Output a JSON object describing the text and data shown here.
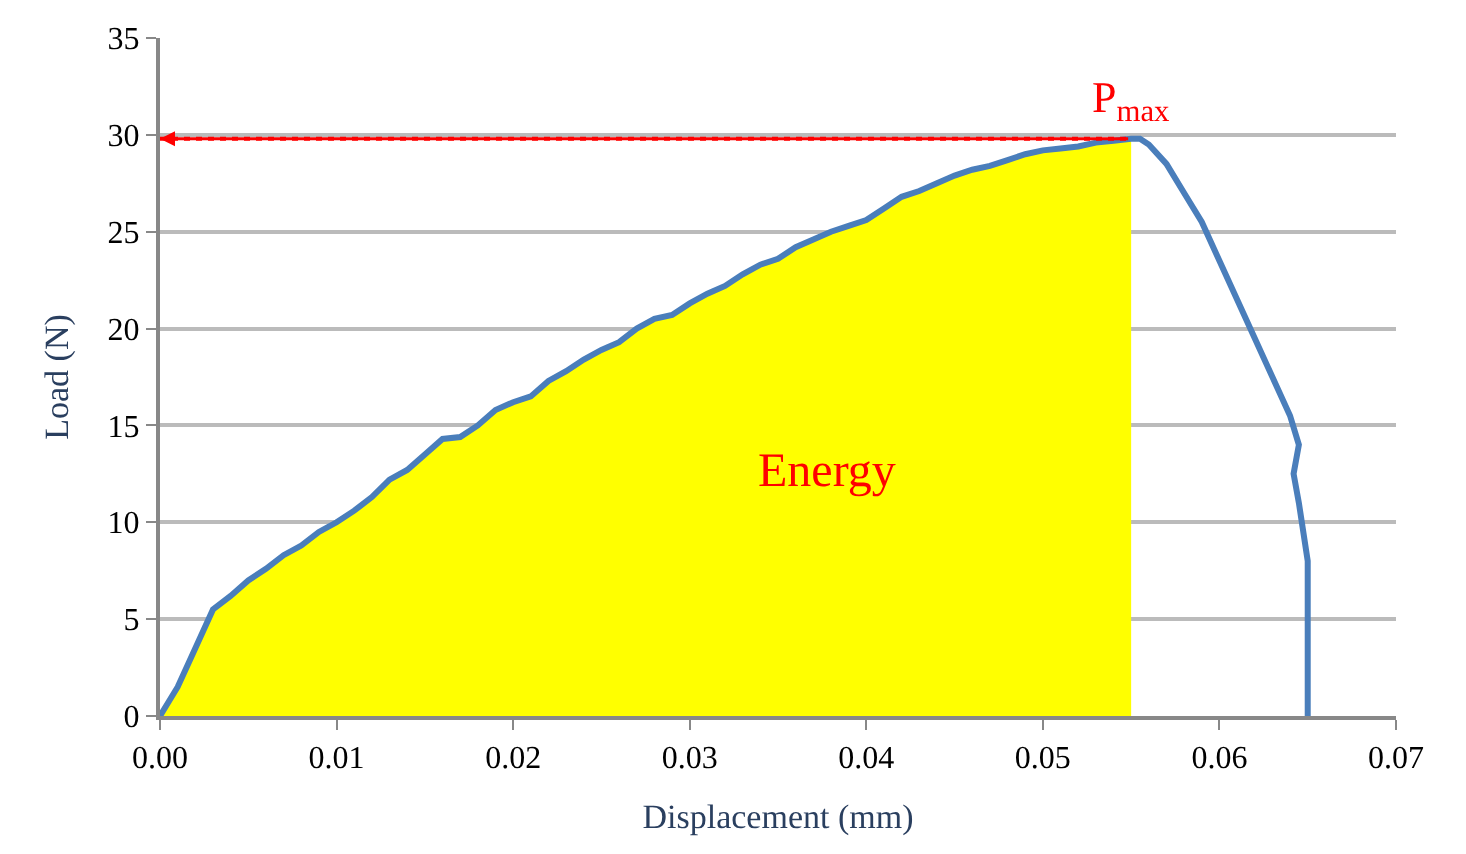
{
  "chart_data": {
    "type": "line",
    "xlabel": "Displacement (mm)",
    "ylabel": "Load (N)",
    "xlim": [
      0,
      0.07
    ],
    "ylim": [
      0,
      35
    ],
    "xticks": [
      {
        "value": 0,
        "label": "0.00"
      },
      {
        "value": 0.01,
        "label": "0.01"
      },
      {
        "value": 0.02,
        "label": "0.02"
      },
      {
        "value": 0.03,
        "label": "0.03"
      },
      {
        "value": 0.04,
        "label": "0.04"
      },
      {
        "value": 0.05,
        "label": "0.05"
      },
      {
        "value": 0.06,
        "label": "0.06"
      },
      {
        "value": 0.07,
        "label": "0.07"
      }
    ],
    "yticks": [
      0,
      5,
      10,
      15,
      20,
      25,
      30,
      35
    ],
    "grid": "y",
    "marker": "none",
    "line_style": "solid",
    "series": [
      {
        "type": "area",
        "color": "#ffff00",
        "x": [
          0,
          0.001,
          0.002,
          0.003,
          0.004,
          0.005,
          0.006,
          0.007,
          0.008,
          0.009,
          0.01,
          0.011,
          0.012,
          0.013,
          0.014,
          0.015,
          0.016,
          0.017,
          0.018,
          0.019,
          0.02,
          0.021,
          0.022,
          0.023,
          0.024,
          0.025,
          0.026,
          0.027,
          0.028,
          0.029,
          0.03,
          0.031,
          0.032,
          0.033,
          0.034,
          0.035,
          0.036,
          0.037,
          0.038,
          0.039,
          0.04,
          0.041,
          0.042,
          0.043,
          0.044,
          0.045,
          0.046,
          0.047,
          0.048,
          0.049,
          0.05,
          0.051,
          0.052,
          0.053,
          0.054,
          0.055
        ],
        "values": [
          0,
          1.5,
          3.5,
          5.5,
          6.2,
          7,
          7.6,
          8.3,
          8.8,
          9.5,
          10,
          10.6,
          11.3,
          12.2,
          12.7,
          13.5,
          14.3,
          14.4,
          15,
          15.8,
          16.2,
          16.5,
          17.3,
          17.8,
          18.4,
          18.9,
          19.3,
          20,
          20.5,
          20.7,
          21.3,
          21.8,
          22.2,
          22.8,
          23.3,
          23.6,
          24.2,
          24.6,
          25,
          25.3,
          25.6,
          26.2,
          26.8,
          27.1,
          27.5,
          27.9,
          28.2,
          28.4,
          28.7,
          29,
          29.2,
          29.3,
          29.4,
          29.6,
          29.7,
          29.8
        ]
      },
      {
        "color": "#4a7ebb",
        "x": [
          0,
          0.001,
          0.002,
          0.003,
          0.004,
          0.005,
          0.006,
          0.007,
          0.008,
          0.009,
          0.01,
          0.011,
          0.012,
          0.013,
          0.014,
          0.015,
          0.016,
          0.017,
          0.018,
          0.019,
          0.02,
          0.021,
          0.022,
          0.023,
          0.024,
          0.025,
          0.026,
          0.027,
          0.028,
          0.029,
          0.03,
          0.031,
          0.032,
          0.033,
          0.034,
          0.035,
          0.036,
          0.037,
          0.038,
          0.039,
          0.04,
          0.041,
          0.042,
          0.043,
          0.044,
          0.045,
          0.046,
          0.047,
          0.048,
          0.049,
          0.05,
          0.051,
          0.052,
          0.053,
          0.054,
          0.055,
          0.0555,
          0.056,
          0.057,
          0.058,
          0.059,
          0.06,
          0.061,
          0.062,
          0.063,
          0.064,
          0.0645,
          0.0642,
          0.0645,
          0.065,
          0.065
        ],
        "values": [
          0,
          1.5,
          3.5,
          5.5,
          6.2,
          7,
          7.6,
          8.3,
          8.8,
          9.5,
          10,
          10.6,
          11.3,
          12.2,
          12.7,
          13.5,
          14.3,
          14.4,
          15,
          15.8,
          16.2,
          16.5,
          17.3,
          17.8,
          18.4,
          18.9,
          19.3,
          20,
          20.5,
          20.7,
          21.3,
          21.8,
          22.2,
          22.8,
          23.3,
          23.6,
          24.2,
          24.6,
          25,
          25.3,
          25.6,
          26.2,
          26.8,
          27.1,
          27.5,
          27.9,
          28.2,
          28.4,
          28.7,
          29,
          29.2,
          29.3,
          29.4,
          29.6,
          29.7,
          29.8,
          29.8,
          29.5,
          28.5,
          27,
          25.5,
          23.5,
          21.5,
          19.5,
          17.5,
          15.5,
          14,
          12.5,
          11,
          8,
          0
        ]
      }
    ],
    "ref_lines": [
      {
        "axis": "y",
        "value": 29.8,
        "label": "P$_{max}$",
        "color": "#ff0000",
        "line_style": "dotted"
      }
    ],
    "annotations": [
      "Energy"
    ]
  }
}
